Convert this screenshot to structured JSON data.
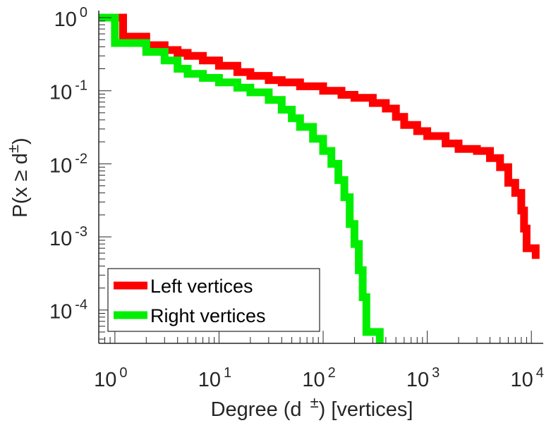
{
  "chart_data": {
    "type": "line",
    "step": true,
    "xscale": "log",
    "yscale": "log",
    "xlim": [
      0.7,
      13000
    ],
    "ylim": [
      3.5e-05,
      1.25
    ],
    "xlabel": "Degree (d ±) [vertices]",
    "ylabel": "P(x ≥ d±)",
    "xlabel_parts": {
      "pre": "Degree (d",
      "sup": "±",
      "post": ") [vertices]"
    },
    "ylabel_parts": {
      "pre": "P(x",
      "op": "≥",
      "mid": "d",
      "sup": "±",
      "post": ")"
    },
    "x_ticks": [
      {
        "value": 1,
        "base": "10",
        "exp": "0"
      },
      {
        "value": 10,
        "base": "10",
        "exp": "1"
      },
      {
        "value": 100,
        "base": "10",
        "exp": "2"
      },
      {
        "value": 1000,
        "base": "10",
        "exp": "3"
      },
      {
        "value": 10000,
        "base": "10",
        "exp": "4"
      }
    ],
    "y_ticks": [
      {
        "value": 1,
        "base": "10",
        "exp": "0"
      },
      {
        "value": 0.1,
        "base": "10",
        "exp": "-1"
      },
      {
        "value": 0.01,
        "base": "10",
        "exp": "-2"
      },
      {
        "value": 0.001,
        "base": "10",
        "exp": "-3"
      },
      {
        "value": 0.0001,
        "base": "10",
        "exp": "-4"
      }
    ],
    "legend_position": "bottom-left",
    "series": [
      {
        "name": "Left vertices",
        "color": "#ff0000",
        "points": [
          [
            0.7,
            1.0
          ],
          [
            1,
            1.0
          ],
          [
            1.2,
            0.55
          ],
          [
            2,
            0.55
          ],
          [
            2,
            0.42
          ],
          [
            3,
            0.42
          ],
          [
            3,
            0.36
          ],
          [
            4,
            0.33
          ],
          [
            5,
            0.3
          ],
          [
            7,
            0.26
          ],
          [
            10,
            0.22
          ],
          [
            15,
            0.18
          ],
          [
            20,
            0.16
          ],
          [
            30,
            0.14
          ],
          [
            40,
            0.13
          ],
          [
            60,
            0.115
          ],
          [
            100,
            0.1
          ],
          [
            150,
            0.088
          ],
          [
            200,
            0.08
          ],
          [
            300,
            0.068
          ],
          [
            400,
            0.057
          ],
          [
            500,
            0.044
          ],
          [
            600,
            0.034
          ],
          [
            800,
            0.028
          ],
          [
            1000,
            0.024
          ],
          [
            1500,
            0.019
          ],
          [
            2000,
            0.016
          ],
          [
            3000,
            0.015
          ],
          [
            4000,
            0.012
          ],
          [
            5000,
            0.009
          ],
          [
            6000,
            0.0055
          ],
          [
            7000,
            0.004
          ],
          [
            8000,
            0.0023
          ],
          [
            8500,
            0.0013
          ],
          [
            9000,
            0.0007
          ],
          [
            11000,
            0.0007
          ],
          [
            11000,
            0.0005
          ]
        ]
      },
      {
        "name": "Right vertices",
        "color": "#00ee00",
        "points": [
          [
            0.7,
            1.0
          ],
          [
            1,
            1.0
          ],
          [
            1,
            0.45
          ],
          [
            2,
            0.45
          ],
          [
            2,
            0.34
          ],
          [
            3,
            0.34
          ],
          [
            3,
            0.26
          ],
          [
            4,
            0.2
          ],
          [
            5,
            0.17
          ],
          [
            7,
            0.15
          ],
          [
            10,
            0.13
          ],
          [
            15,
            0.11
          ],
          [
            20,
            0.095
          ],
          [
            30,
            0.075
          ],
          [
            40,
            0.055
          ],
          [
            50,
            0.042
          ],
          [
            60,
            0.032
          ],
          [
            80,
            0.022
          ],
          [
            100,
            0.015
          ],
          [
            120,
            0.01
          ],
          [
            140,
            0.006
          ],
          [
            160,
            0.0035
          ],
          [
            180,
            0.0015
          ],
          [
            200,
            0.0008
          ],
          [
            220,
            0.00035
          ],
          [
            240,
            0.00015
          ],
          [
            260,
            5e-05
          ],
          [
            350,
            5e-05
          ],
          [
            350,
            3.5e-05
          ]
        ]
      }
    ]
  }
}
